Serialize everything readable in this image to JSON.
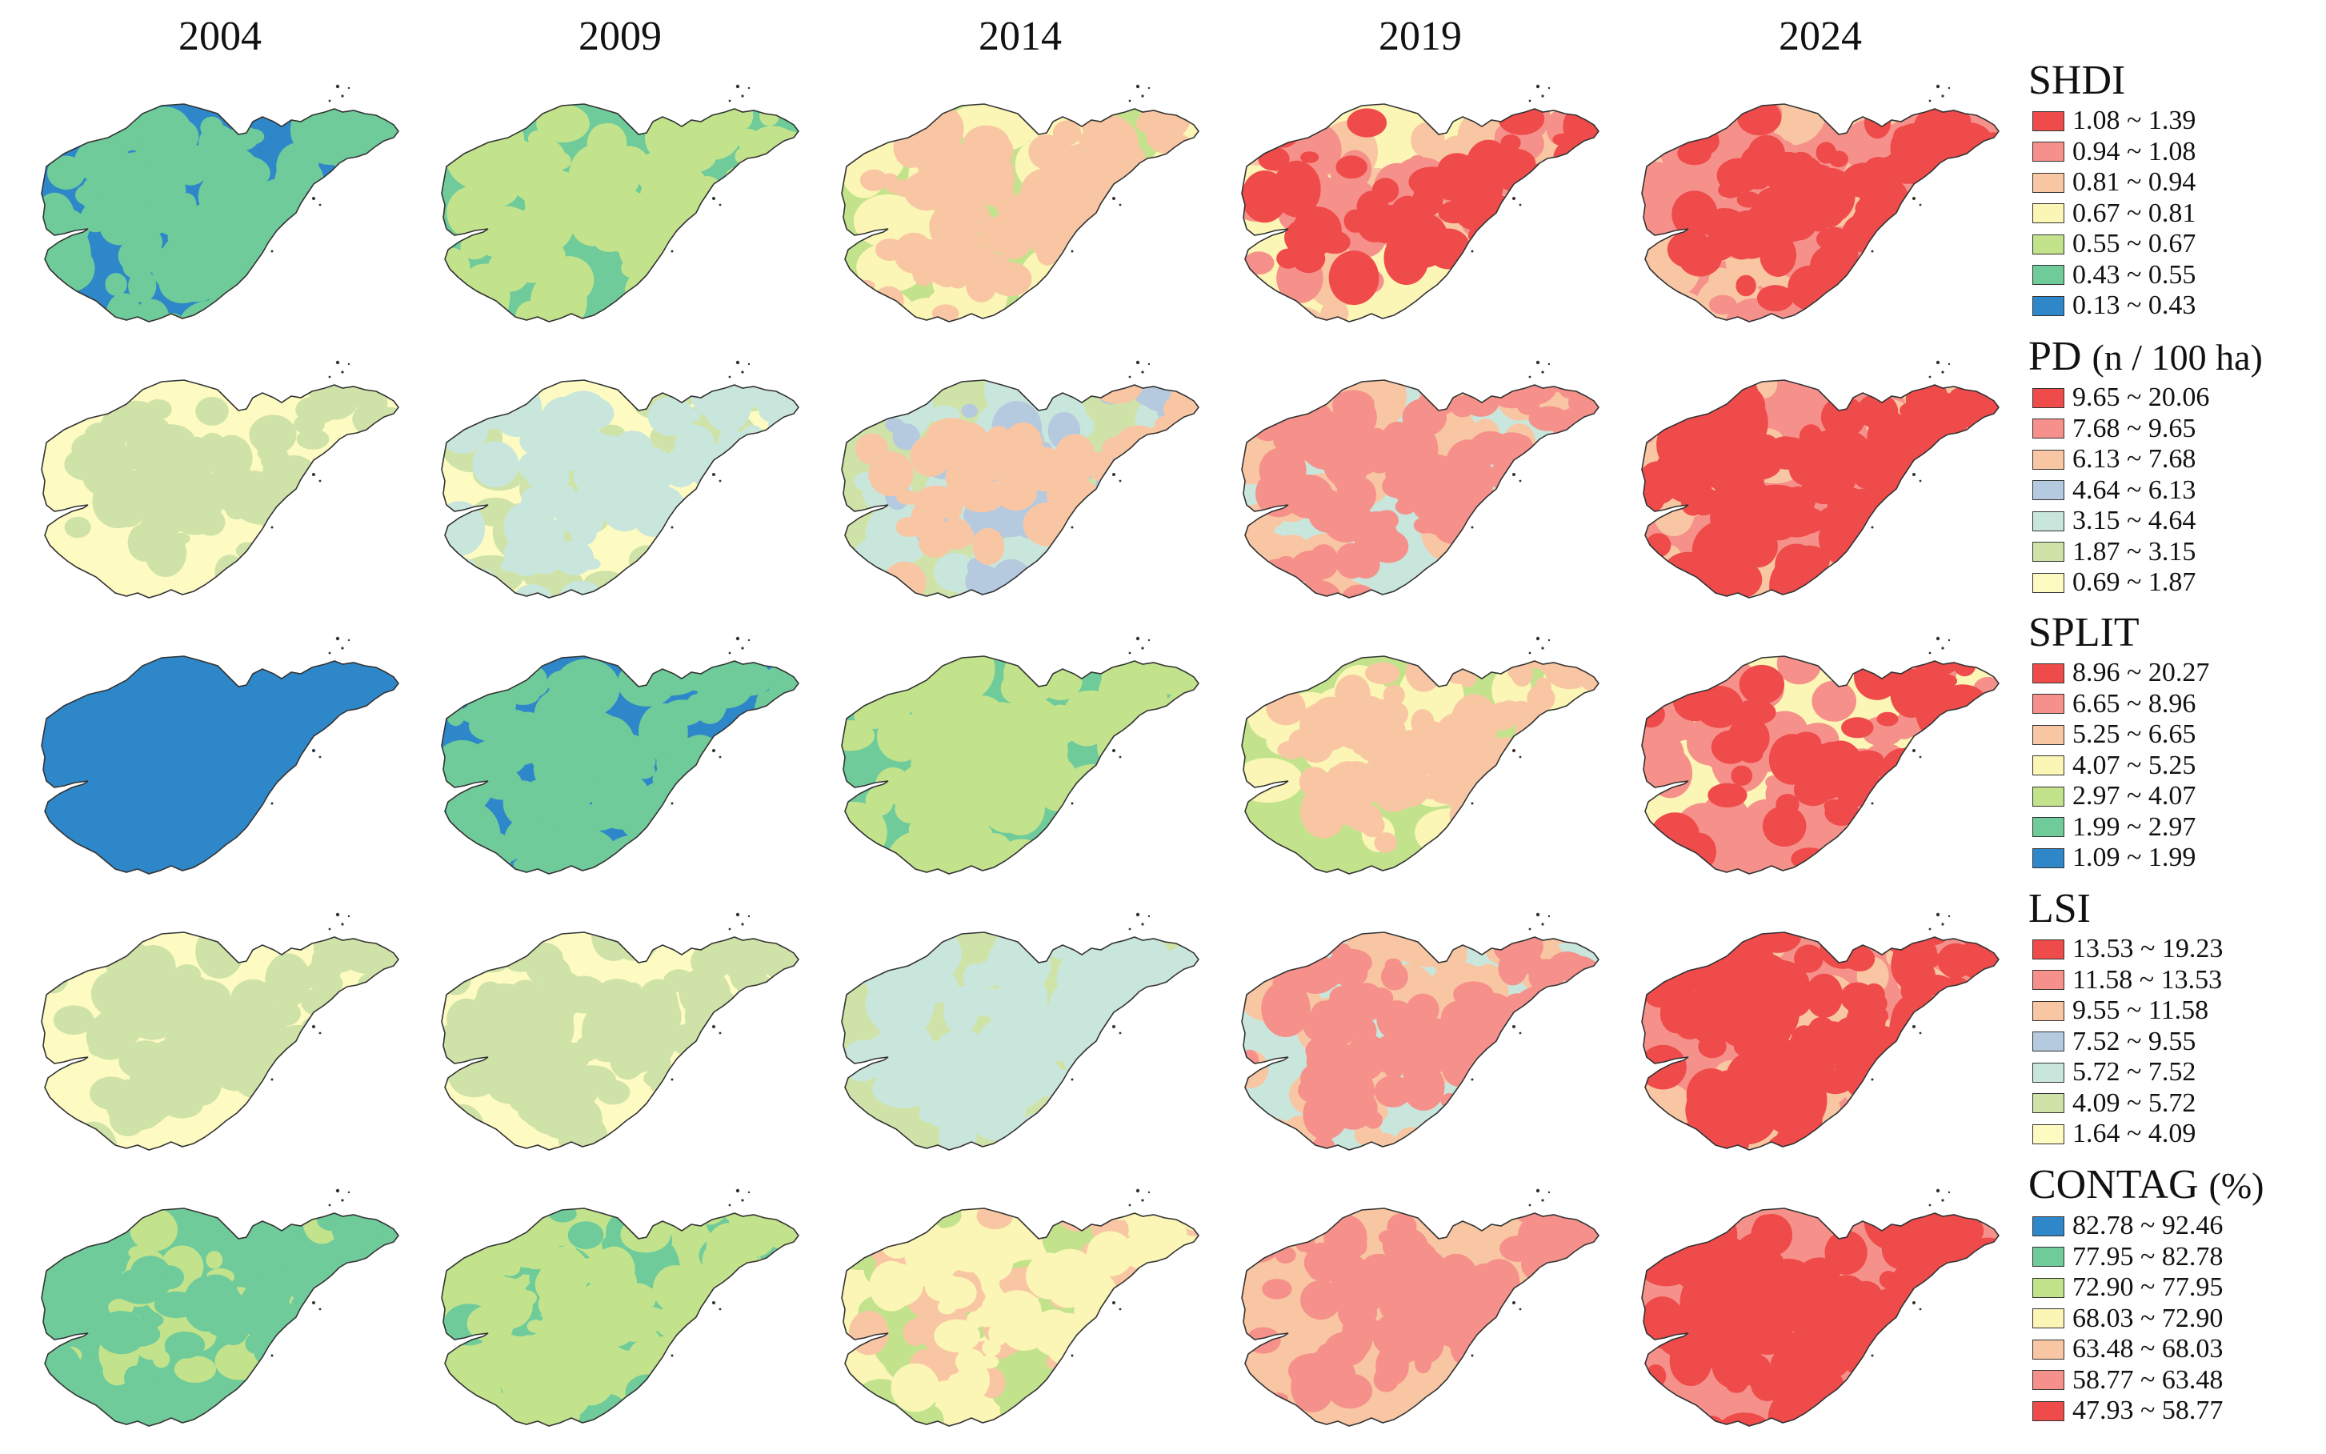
{
  "years": [
    "2004",
    "2009",
    "2014",
    "2019",
    "2024"
  ],
  "indices": [
    {
      "key": "SHDI",
      "title": "SHDI",
      "unit": "",
      "classes": [
        {
          "range": "1.08 ~ 1.39",
          "color": "#ef4b4b"
        },
        {
          "range": "0.94 ~ 1.08",
          "color": "#f5918a"
        },
        {
          "range": "0.81 ~ 0.94",
          "color": "#f9c6a3"
        },
        {
          "range": "0.67 ~ 0.81",
          "color": "#fbf5b6"
        },
        {
          "range": "0.55 ~ 0.67",
          "color": "#c2e38c"
        },
        {
          "range": "0.43 ~ 0.55",
          "color": "#6fcb9a"
        },
        {
          "range": "0.13 ~ 0.43",
          "color": "#2e87c9"
        }
      ],
      "dominant": [
        [
          6,
          5,
          4,
          3,
          1
        ],
        [
          6,
          5,
          4,
          3,
          2
        ],
        [
          5,
          4,
          3,
          2,
          1
        ],
        [
          5,
          4,
          2,
          1,
          0
        ],
        [
          5,
          4,
          2,
          0,
          0
        ]
      ]
    },
    {
      "key": "PD",
      "title": "PD",
      "unit": "(n / 100 ha)",
      "classes": [
        {
          "range": "9.65 ~ 20.06",
          "color": "#ef4b4b"
        },
        {
          "range": "7.68 ~ 9.65",
          "color": "#f5918a"
        },
        {
          "range": "6.13 ~ 7.68",
          "color": "#f9c6a3"
        },
        {
          "range": "4.64 ~ 6.13",
          "color": "#b5c9df"
        },
        {
          "range": "3.15 ~ 4.64",
          "color": "#c9e6dc"
        },
        {
          "range": "1.87 ~ 3.15",
          "color": "#cfe3a8"
        },
        {
          "range": "0.69 ~ 1.87",
          "color": "#fdfbc2"
        }
      ],
      "dominant": [
        [
          6,
          6,
          5,
          4,
          1
        ],
        [
          6,
          6,
          5,
          4,
          2
        ],
        [
          6,
          5,
          4,
          2,
          0
        ],
        [
          5,
          4,
          3,
          1,
          0
        ],
        [
          5,
          4,
          2,
          1,
          0
        ]
      ]
    },
    {
      "key": "SPLIT",
      "title": "SPLIT",
      "unit": "",
      "classes": [
        {
          "range": "8.96 ~ 20.27",
          "color": "#ef4b4b"
        },
        {
          "range": "6.65 ~ 8.96",
          "color": "#f5918a"
        },
        {
          "range": "5.25 ~ 6.65",
          "color": "#f9c6a3"
        },
        {
          "range": "4.07 ~ 5.25",
          "color": "#fbf5b6"
        },
        {
          "range": "2.97 ~ 4.07",
          "color": "#c2e38c"
        },
        {
          "range": "1.99 ~ 2.97",
          "color": "#6fcb9a"
        },
        {
          "range": "1.09 ~ 1.99",
          "color": "#2e87c9"
        }
      ],
      "dominant": [
        [
          6,
          6,
          5,
          4,
          3
        ],
        [
          6,
          6,
          5,
          4,
          3
        ],
        [
          6,
          5,
          4,
          3,
          1
        ],
        [
          6,
          5,
          4,
          2,
          1
        ],
        [
          6,
          5,
          4,
          2,
          0
        ]
      ]
    },
    {
      "key": "LSI",
      "title": "LSI",
      "unit": "",
      "classes": [
        {
          "range": "13.53 ~ 19.23",
          "color": "#ef4b4b"
        },
        {
          "range": "11.58 ~ 13.53",
          "color": "#f5918a"
        },
        {
          "range": "9.55 ~ 11.58",
          "color": "#f9c6a3"
        },
        {
          "range": "7.52 ~ 9.55",
          "color": "#b5c9df"
        },
        {
          "range": "5.72 ~ 7.52",
          "color": "#c9e6dc"
        },
        {
          "range": "4.09 ~ 5.72",
          "color": "#cfe3a8"
        },
        {
          "range": "1.64 ~ 4.09",
          "color": "#fdfbc2"
        }
      ],
      "dominant": [
        [
          6,
          6,
          5,
          4,
          1
        ],
        [
          6,
          6,
          5,
          4,
          2
        ],
        [
          6,
          5,
          4,
          2,
          0
        ],
        [
          5,
          5,
          4,
          1,
          0
        ],
        [
          5,
          5,
          4,
          1,
          0
        ]
      ]
    },
    {
      "key": "CONTAG",
      "title": "CONTAG",
      "unit": "(%)",
      "classes": [
        {
          "range": "82.78 ~ 92.46",
          "color": "#2e87c9"
        },
        {
          "range": "77.95 ~ 82.78",
          "color": "#6fcb9a"
        },
        {
          "range": "72.90 ~ 77.95",
          "color": "#c2e38c"
        },
        {
          "range": "68.03 ~ 72.90",
          "color": "#fbf5b6"
        },
        {
          "range": "63.48 ~ 68.03",
          "color": "#f9c6a3"
        },
        {
          "range": "58.77 ~ 63.48",
          "color": "#f5918a"
        },
        {
          "range": "47.93 ~ 58.77",
          "color": "#ef4b4b"
        }
      ],
      "dominant": [
        [
          1,
          2,
          3,
          4,
          5
        ],
        [
          1,
          2,
          3,
          4,
          5
        ],
        [
          1,
          1,
          2,
          4,
          6
        ],
        [
          2,
          2,
          4,
          5,
          6
        ],
        [
          1,
          2,
          3,
          5,
          6
        ]
      ]
    }
  ]
}
